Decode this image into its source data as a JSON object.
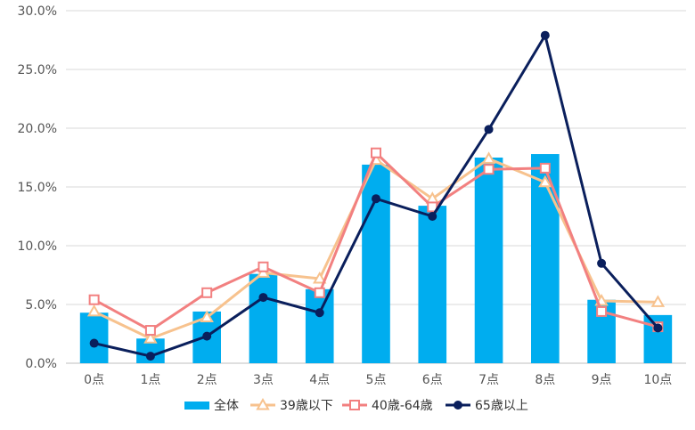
{
  "chart_data": {
    "type": "bar+line",
    "categories": [
      "0点",
      "1点",
      "2点",
      "3点",
      "4点",
      "5点",
      "6点",
      "7点",
      "8点",
      "9点",
      "10点"
    ],
    "ylim": [
      0,
      30
    ],
    "y_ticks": [
      "0.0%",
      "5.0%",
      "10.0%",
      "15.0%",
      "20.0%",
      "25.0%",
      "30.0%"
    ],
    "grid": true,
    "legend_position": "bottom",
    "series": [
      {
        "name": "全体",
        "kind": "bar",
        "color": "#00ADEF",
        "values": [
          4.3,
          2.1,
          4.4,
          7.6,
          6.3,
          16.9,
          13.4,
          17.5,
          17.8,
          5.4,
          4.1
        ]
      },
      {
        "name": "39歳以下",
        "kind": "line",
        "marker": "triangle",
        "color": "#F7C28E",
        "values": [
          4.4,
          2.1,
          3.9,
          7.7,
          7.2,
          17.3,
          14.0,
          17.4,
          15.4,
          5.3,
          5.2
        ]
      },
      {
        "name": "40歳-64歳",
        "kind": "line",
        "marker": "square",
        "color": "#F28080",
        "values": [
          5.4,
          2.8,
          6.0,
          8.2,
          6.0,
          17.9,
          13.3,
          16.5,
          16.6,
          4.4,
          3.1
        ]
      },
      {
        "name": "65歳以上",
        "kind": "line",
        "marker": "circle",
        "color": "#0A1F5C",
        "values": [
          1.7,
          0.6,
          2.3,
          5.6,
          4.3,
          14.0,
          12.5,
          19.9,
          27.9,
          8.5,
          3.0
        ]
      }
    ]
  }
}
